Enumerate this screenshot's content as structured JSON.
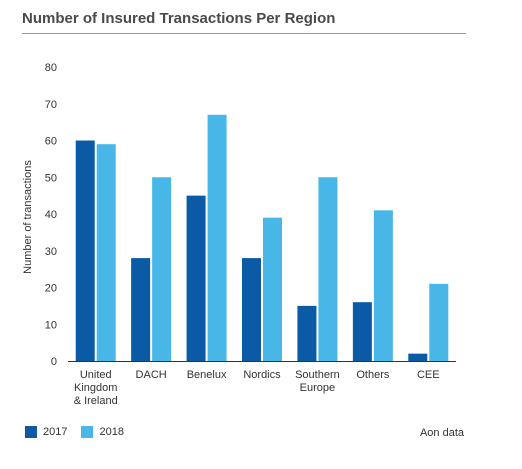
{
  "colors": {
    "series_2017": "#0a5aa5",
    "series_2018": "#48b7e8"
  },
  "chart_data": {
    "type": "bar",
    "title": "Number of Insured Transactions Per Region",
    "xlabel": "",
    "ylabel": "Number of transactions",
    "ylim": [
      0,
      80
    ],
    "yticks": [
      "0",
      "10",
      "20",
      "30",
      "40",
      "50",
      "60",
      "70",
      "80"
    ],
    "grid": false,
    "legend_position": "bottom-left",
    "categories": [
      [
        "United",
        "Kingdom",
        "& Ireland"
      ],
      [
        "DACH"
      ],
      [
        "Benelux"
      ],
      [
        "Nordics"
      ],
      [
        "Southern",
        "Europe"
      ],
      [
        "Others"
      ],
      [
        "CEE"
      ]
    ],
    "series": [
      {
        "name": "2017",
        "values": [
          60,
          28,
          45,
          28,
          15,
          16,
          2
        ]
      },
      {
        "name": "2018",
        "values": [
          59,
          50,
          67,
          39,
          50,
          41,
          21
        ]
      }
    ],
    "source": "Aon data"
  }
}
